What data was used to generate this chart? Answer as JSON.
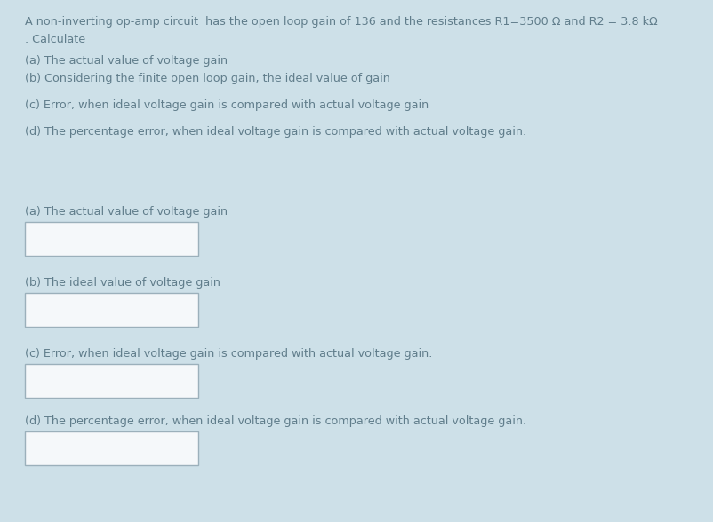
{
  "background_color": "#cde0e8",
  "text_color": "#607d8b",
  "box_bg": "#f5f8fa",
  "box_border": "#9bb0bb",
  "title_line1": "A non-inverting op-amp circuit  has the open loop gain of 136 and the resistances R1=3500 Ω and R2 = 3.8 kΩ",
  "title_line2": ". Calculate",
  "questions": [
    "(a) The actual value of voltage gain",
    "(b) Considering the finite open loop gain, the ideal value of gain",
    "(c) Error, when ideal voltage gain is compared with actual voltage gain",
    "(d) The percentage error, when ideal voltage gain is compared with actual voltage gain."
  ],
  "answer_labels": [
    "(a) The actual value of voltage gain",
    "(b) The ideal value of voltage gain",
    "(c) Error, when ideal voltage gain is compared with actual voltage gain.",
    "(d) The percentage error, when ideal voltage gain is compared with actual voltage gain."
  ],
  "font_size": 9.2,
  "fig_width": 8.02,
  "fig_height": 5.88,
  "dpi": 100
}
